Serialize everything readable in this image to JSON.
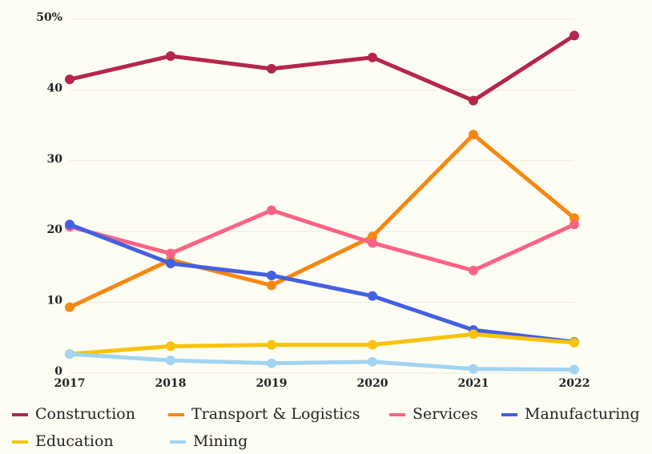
{
  "chart_data": {
    "type": "line",
    "categories": [
      "2017",
      "2018",
      "2019",
      "2020",
      "2021",
      "2022"
    ],
    "series": [
      {
        "name": "Construction",
        "color": "#b5264a",
        "values": [
          41.5,
          44.8,
          43.0,
          44.6,
          38.5,
          47.7
        ]
      },
      {
        "name": "Transport & Logistics",
        "color": "#f7870f",
        "values": [
          9.3,
          16.0,
          12.4,
          19.3,
          33.7,
          21.9
        ]
      },
      {
        "name": "Services",
        "color": "#fb6383",
        "values": [
          20.7,
          16.9,
          23.0,
          18.4,
          14.5,
          21.0
        ]
      },
      {
        "name": "Manufacturing",
        "color": "#4360e0",
        "values": [
          21.0,
          15.5,
          13.8,
          10.9,
          6.1,
          4.4
        ]
      },
      {
        "name": "Education",
        "color": "#f8c30a",
        "values": [
          2.7,
          3.8,
          4.0,
          4.0,
          5.5,
          4.3
        ]
      },
      {
        "name": "Mining",
        "color": "#a1d4f2",
        "values": [
          2.7,
          1.8,
          1.4,
          1.6,
          0.6,
          0.5
        ]
      }
    ],
    "ylim": [
      0,
      50
    ],
    "yticks": [
      0,
      10,
      20,
      30,
      40,
      {
        "value": 50,
        "label": "50%"
      }
    ],
    "grid": true
  }
}
